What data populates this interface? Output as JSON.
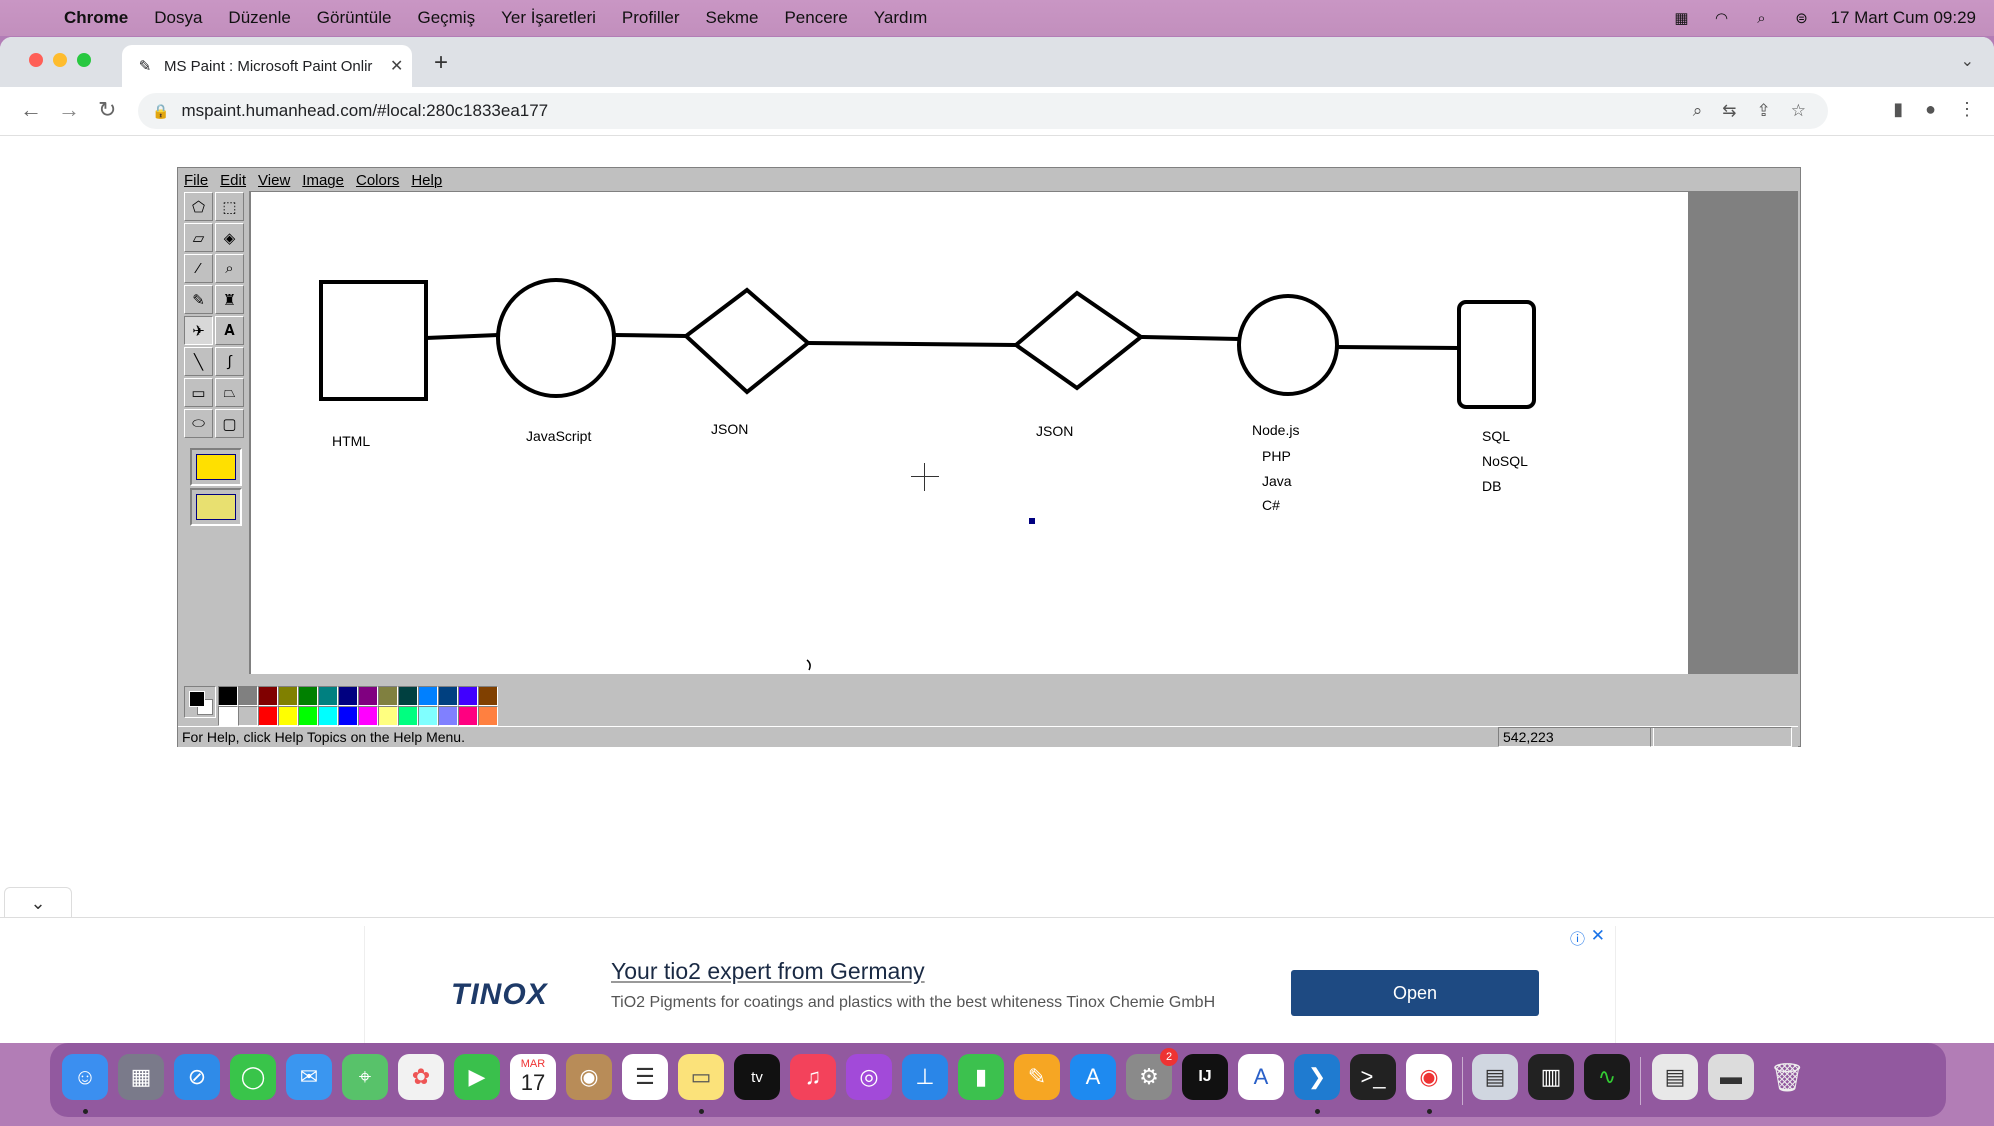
{
  "menubar": {
    "app": "Chrome",
    "items": [
      "Dosya",
      "Düzenle",
      "Görüntüle",
      "Geçmiş",
      "Yer İşaretleri",
      "Profiller",
      "Sekme",
      "Pencere",
      "Yardım"
    ],
    "clock": "17 Mart Cum  09:29"
  },
  "browser": {
    "tab_title": "MS Paint : Microsoft Paint Onlir",
    "url": "mspaint.humanhead.com/#local:280c1833ea177"
  },
  "paint": {
    "menu": [
      "File",
      "Edit",
      "View",
      "Image",
      "Colors",
      "Help"
    ],
    "diagram_labels": {
      "html": "HTML",
      "javascript": "JavaScript",
      "json1": "JSON",
      "json2": "JSON",
      "node": "Node.js",
      "php": "PHP",
      "java": "Java",
      "csharp": "C#",
      "sql": "SQL",
      "nosql": "NoSQL",
      "db": "DB"
    },
    "palette_colors": [
      "#000000",
      "#808080",
      "#800000",
      "#808000",
      "#008000",
      "#008080",
      "#000080",
      "#800080",
      "#808040",
      "#004040",
      "#0080ff",
      "#004080",
      "#4000ff",
      "#804000",
      "#ffffff",
      "#c0c0c0",
      "#ff0000",
      "#ffff00",
      "#00ff00",
      "#00ffff",
      "#0000ff",
      "#ff00ff",
      "#ffff80",
      "#00ff80",
      "#80ffff",
      "#8080ff",
      "#ff0080",
      "#ff8040"
    ],
    "status_text": "For Help, click Help Topics on the Help Menu.",
    "status_coords": "542,223"
  },
  "ad": {
    "logo": "TINOX",
    "title": "Your tio2 expert from Germany",
    "description": "TiO2 Pigments for coatings and plastics with the best whiteness Tinox Chemie GmbH",
    "button": "Open"
  },
  "dock": {
    "calendar_month": "MAR",
    "calendar_day": "17",
    "tv_label": "tv",
    "settings_badge": "2",
    "intellij_label": "IJ"
  }
}
